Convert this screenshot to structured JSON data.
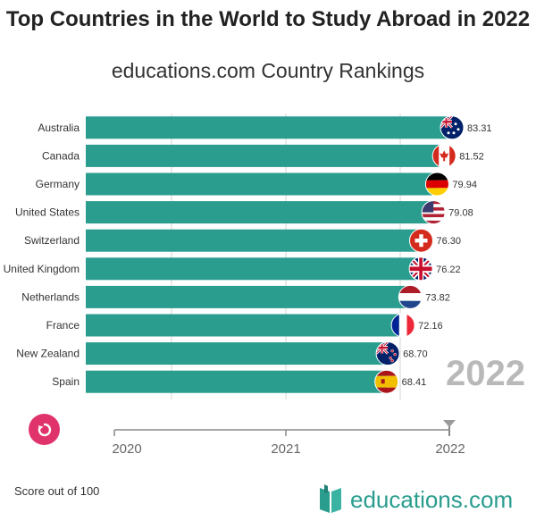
{
  "title": "Top Countries in the World to Study Abroad in 2022",
  "subtitle": "educations.com Country Rankings",
  "chart_data": {
    "type": "bar",
    "orientation": "horizontal",
    "categories": [
      "Australia",
      "Canada",
      "Germany",
      "United States",
      "Switzerland",
      "United Kingdom",
      "Netherlands",
      "France",
      "New Zealand",
      "Spain"
    ],
    "values": [
      83.31,
      81.52,
      79.94,
      79.08,
      76.3,
      76.22,
      73.82,
      72.16,
      68.7,
      68.41
    ],
    "value_labels": [
      "83.31",
      "81.52",
      "79.94",
      "79.08",
      "76.30",
      "76.22",
      "73.82",
      "72.16",
      "68.70",
      "68.41"
    ],
    "flags": [
      "australia-flag",
      "canada-flag",
      "germany-flag",
      "united-states-flag",
      "switzerland-flag",
      "united-kingdom-flag",
      "netherlands-flag",
      "france-flag",
      "new-zealand-flag",
      "spain-flag"
    ],
    "bar_color": "#2a9d8f",
    "grid": true
  },
  "current_year": "2022",
  "timeline": {
    "years": [
      "2020",
      "2021",
      "2022"
    ],
    "selected": "2022"
  },
  "replay_icon": "replay-icon",
  "footer_note": "Score out of 100",
  "brand": {
    "name": "educations.com",
    "color": "#2a9d8f",
    "accent": "#e0336b"
  }
}
